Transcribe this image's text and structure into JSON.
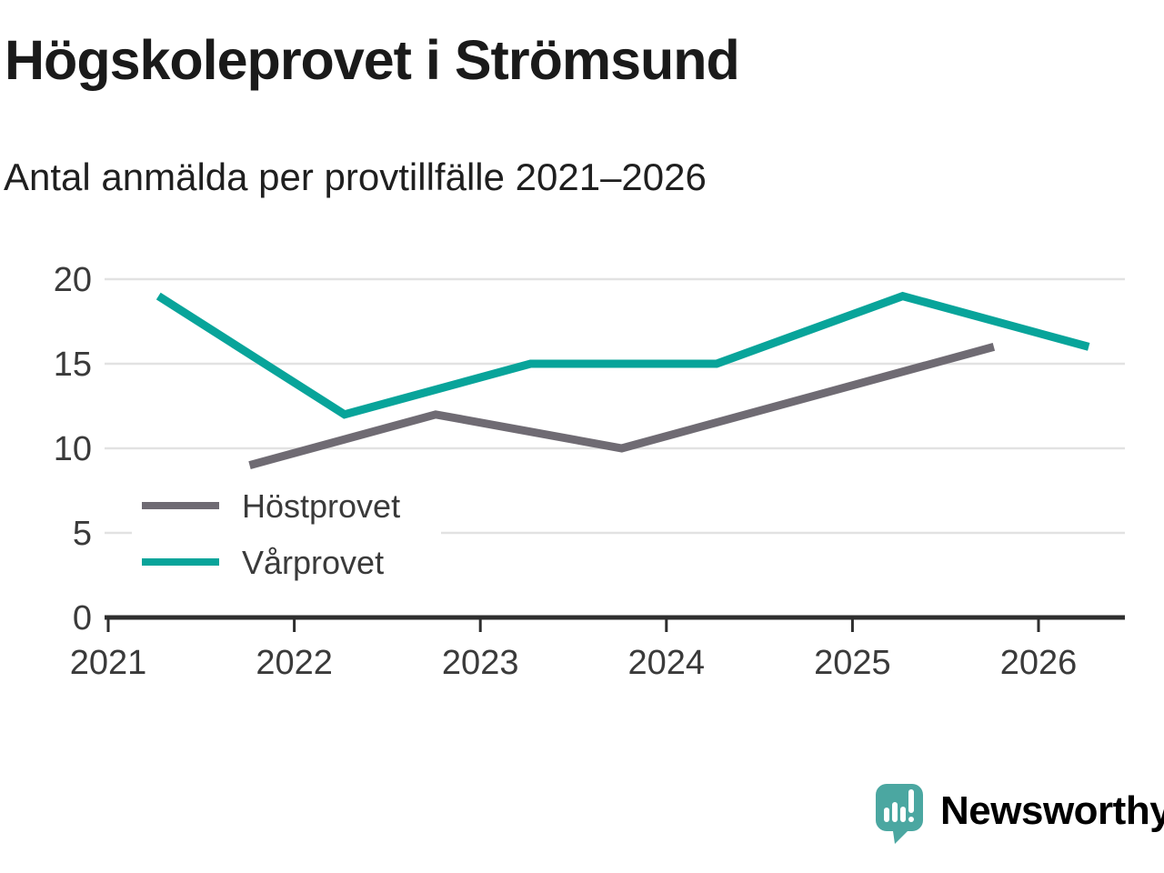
{
  "header": {
    "title": "Högskoleprovet i Strömsund",
    "subtitle": "Antal anmälda per provtillfälle 2021–2026"
  },
  "chart_data": {
    "type": "line",
    "title": "Högskoleprovet i Strömsund",
    "subtitle": "Antal anmälda per provtillfälle 2021–2026",
    "xlabel": "",
    "ylabel": "",
    "x_ticks": [
      2021,
      2022,
      2023,
      2024,
      2025,
      2026
    ],
    "y_ticks": [
      0,
      5,
      10,
      15,
      20
    ],
    "xlim": [
      2021,
      2026.55
    ],
    "ylim": [
      0,
      20
    ],
    "grid": "horizontal-only",
    "legend_position": "inside-lower-left",
    "series": [
      {
        "name": "Höstprovet",
        "color": "#6f6b73",
        "points": [
          [
            2021.76,
            9
          ],
          [
            2022.76,
            12
          ],
          [
            2023.76,
            10
          ],
          [
            2024.76,
            13
          ],
          [
            2025.76,
            16
          ]
        ]
      },
      {
        "name": "Vårprovet",
        "color": "#08a49a",
        "points": [
          [
            2021.27,
            19
          ],
          [
            2022.27,
            12
          ],
          [
            2023.27,
            15
          ],
          [
            2024.27,
            15
          ],
          [
            2025.27,
            19
          ],
          [
            2026.27,
            16
          ]
        ]
      }
    ]
  },
  "style": {
    "grid_color": "#e2e2e2",
    "axis_color": "#2e2e2e",
    "label_color": "#3a3a3a"
  },
  "branding": {
    "logo_text": "Newsworthy",
    "logo_text_color": "#3ea59f",
    "logo_bubble_color": "#4ba7a1"
  }
}
